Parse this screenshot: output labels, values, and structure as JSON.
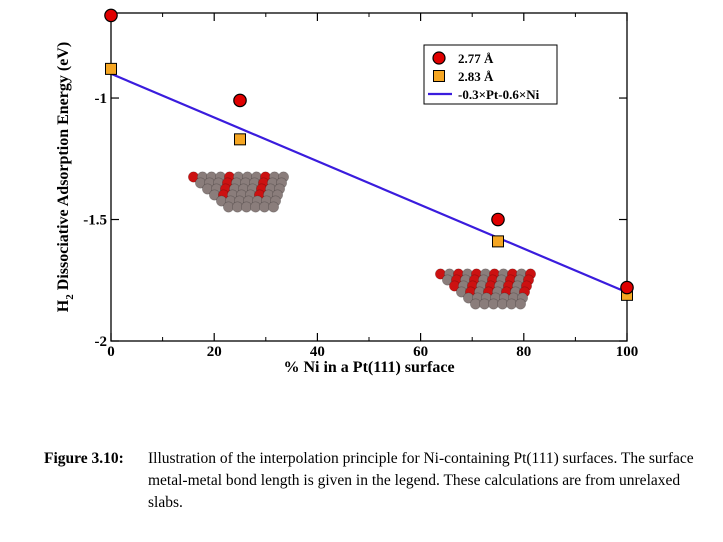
{
  "chart_data": {
    "type": "scatter",
    "ylabel_main": "H",
    "ylabel_sub": "2",
    "ylabel_rest": " Dissociative Adsorption Energy (eV)",
    "xlabel": "% Ni in a Pt(111) surface",
    "xlim": [
      0,
      100
    ],
    "ylim": [
      -2,
      -0.65
    ],
    "x_ticks": [
      0,
      20,
      40,
      60,
      80,
      100
    ],
    "x_tick_labels": [
      "0",
      "20",
      "40",
      "60",
      "80",
      "100"
    ],
    "y_ticks": [
      -2,
      -1.5,
      -1
    ],
    "y_tick_labels": [
      "-2",
      "-1.5",
      "-1"
    ],
    "legend_position": "top-right",
    "series": [
      {
        "name": "2.77 Å",
        "marker": "circle",
        "color": "#e00000",
        "points": [
          [
            0,
            -0.66
          ],
          [
            25,
            -1.01
          ],
          [
            75,
            -1.5
          ],
          [
            100,
            -1.78
          ]
        ]
      },
      {
        "name": "2.83 Å",
        "marker": "square",
        "color": "#f5a623",
        "points": [
          [
            0,
            -0.88
          ],
          [
            25,
            -1.17
          ],
          [
            75,
            -1.59
          ],
          [
            100,
            -1.81
          ]
        ]
      },
      {
        "name": "-0.3×Pt-0.6×Ni",
        "marker": "line",
        "color": "#3a1cdd",
        "points": [
          [
            0,
            -0.9
          ],
          [
            100,
            -1.8
          ]
        ]
      }
    ]
  },
  "caption": {
    "label": "Figure 3.10:",
    "text": "Illustration of the interpolation principle for Ni-containing Pt(111) surfaces. The surface metal-metal bond length is given in the legend. These calculations are from unrelaxed slabs."
  }
}
